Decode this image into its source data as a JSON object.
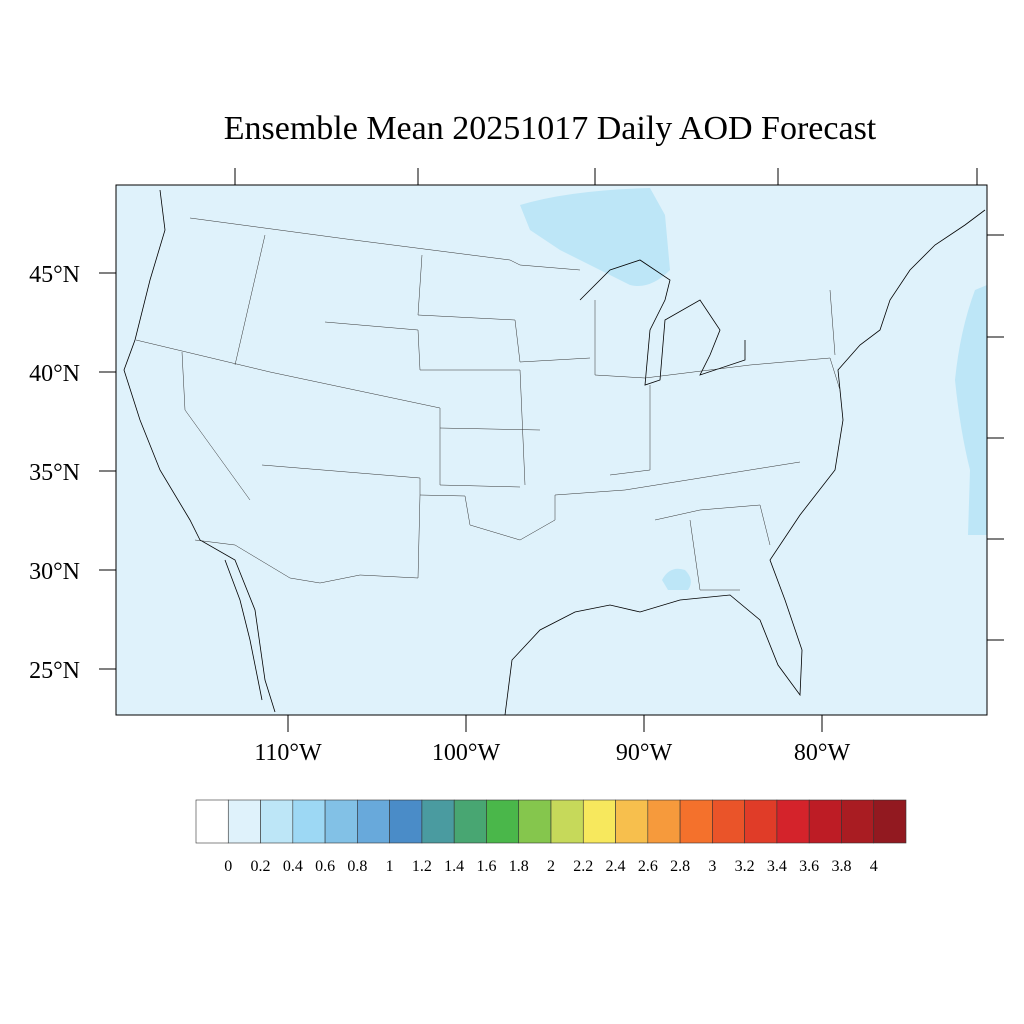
{
  "title": "Ensemble Mean 20251017 Daily AOD Forecast",
  "map": {
    "projection": "Lambert conformal",
    "lat_labels": [
      "45°N",
      "40°N",
      "35°N",
      "30°N",
      "25°N"
    ],
    "lon_labels": [
      "110°W",
      "100°W",
      "90°W",
      "80°W"
    ],
    "background_color": "#dff2fb",
    "patch_color": "#bde6f7"
  },
  "colorbar": {
    "colors": [
      "#ffffff",
      "#dff2fb",
      "#bde6f7",
      "#9dd8f4",
      "#82c1e6",
      "#68a9db",
      "#4a8cc8",
      "#4a9ba0",
      "#48a672",
      "#4ab74a",
      "#85c64d",
      "#c6d95a",
      "#f7e85d",
      "#f7bf4d",
      "#f69a3c",
      "#f4712c",
      "#ea5429",
      "#e03c28",
      "#d4232b",
      "#bd1c25",
      "#a91c22",
      "#921920"
    ],
    "labels": [
      "0",
      "0.2",
      "0.4",
      "0.6",
      "0.8",
      "1",
      "1.2",
      "1.4",
      "1.6",
      "1.8",
      "2",
      "2.2",
      "2.4",
      "2.6",
      "2.8",
      "3",
      "3.2",
      "3.4",
      "3.6",
      "3.8",
      "4"
    ]
  }
}
